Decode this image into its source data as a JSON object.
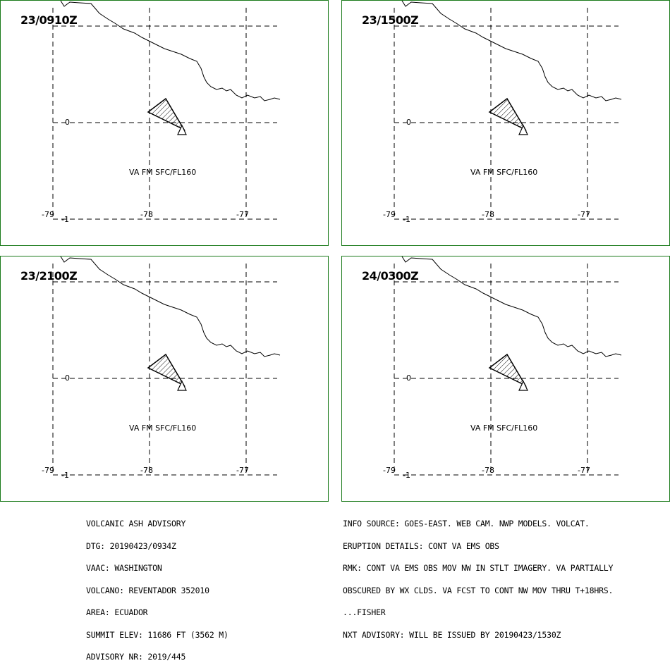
{
  "panels": [
    {
      "time": "23/0910Z",
      "ash_label": "VA FM SFC/FL160"
    },
    {
      "time": "23/1500Z",
      "ash_label": "VA FM SFC/FL160"
    },
    {
      "time": "23/2100Z",
      "ash_label": "VA FM SFC/FL160"
    },
    {
      "time": "24/0300Z",
      "ash_label": "VA FM SFC/FL160"
    }
  ],
  "axes": {
    "lon_labels": [
      "-79",
      "-78",
      "-77"
    ],
    "lat_labels": [
      "0",
      "-1"
    ]
  },
  "advisory_left": [
    "VOLCANIC ASH ADVISORY",
    "DTG: 20190423/0934Z",
    "VAAC: WASHINGTON",
    "VOLCANO: REVENTADOR 352010",
    "AREA: ECUADOR",
    "SUMMIT ELEV: 11686 FT (3562 M)",
    "ADVISORY NR: 2019/445"
  ],
  "advisory_right": [
    "INFO SOURCE: GOES-EAST. WEB CAM. NWP MODELS. VOLCAT.",
    "ERUPTION DETAILS: CONT VA EMS OBS",
    "RMK: CONT VA EMS OBS MOV NW IN STLT IMAGERY. VA PARTIALLY",
    "OBSCURED BY WX CLDS. VA FCST TO CONT NW MOV THRU T+18HRS.",
    "...FISHER",
    "NXT ADVISORY: WILL BE ISSUED BY 20190423/1530Z"
  ],
  "colors": {
    "panel_border": "#1a7a1a",
    "ink": "#000000"
  }
}
